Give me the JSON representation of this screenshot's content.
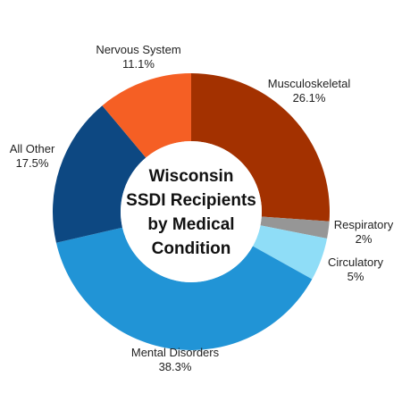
{
  "chart_data": {
    "type": "pie",
    "title_lines": [
      "Wisconsin",
      "SSDI Recipients",
      "by Medical",
      "Condition"
    ],
    "slices": [
      {
        "name": "Musculoskeletal",
        "value": 26.1,
        "label": "26.1%",
        "color": "#A33100"
      },
      {
        "name": "Respiratory",
        "value": 2,
        "label": "2%",
        "color": "#969696"
      },
      {
        "name": "Circulatory",
        "value": 5,
        "label": "5%",
        "color": "#8FDDF7"
      },
      {
        "name": "Mental Disorders",
        "value": 38.3,
        "label": "38.3%",
        "color": "#2194D6"
      },
      {
        "name": "All Other",
        "value": 17.5,
        "label": "17.5%",
        "color": "#0D4882"
      },
      {
        "name": "Nervous System",
        "value": 11.1,
        "label": "11.1%",
        "color": "#F55F24"
      }
    ]
  }
}
